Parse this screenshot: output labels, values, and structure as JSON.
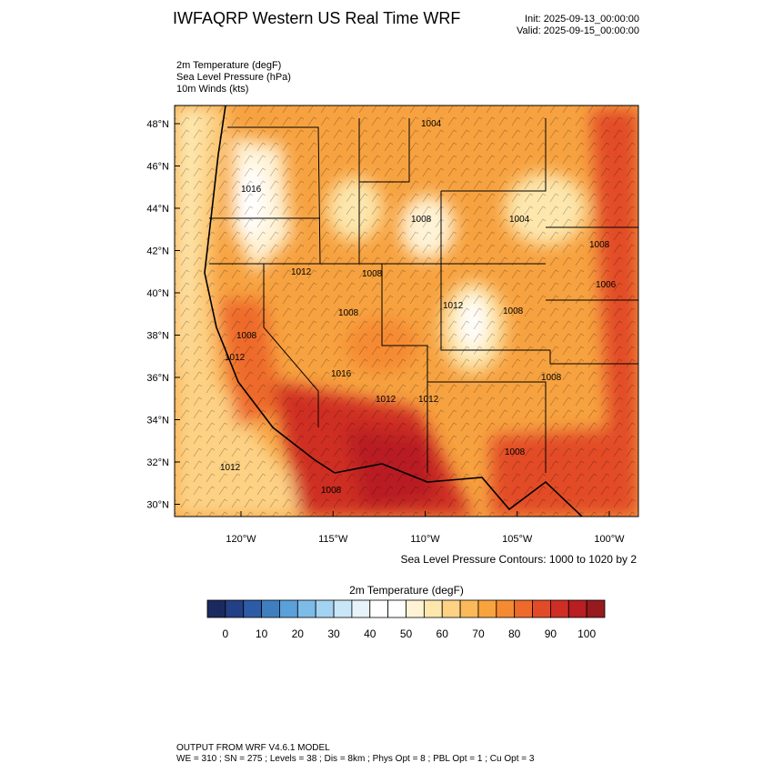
{
  "header": {
    "title": "IWFAQRP Western US Real Time WRF",
    "init": "Init: 2025-09-13_00:00:00",
    "valid": "Valid: 2025-09-15_00:00:00",
    "fields": [
      "2m Temperature   (degF)",
      "Sea Level Pressure   (hPa)",
      "10m Winds   (kts)"
    ]
  },
  "map": {
    "lat_labels": [
      "48°N",
      "46°N",
      "44°N",
      "42°N",
      "40°N",
      "38°N",
      "36°N",
      "34°N",
      "32°N",
      "30°N"
    ],
    "lon_labels": [
      "120°W",
      "115°W",
      "110°W",
      "105°W",
      "100°W"
    ],
    "contour_labels": [
      "1004",
      "1016",
      "1008",
      "1004",
      "1008",
      "1006",
      "1012",
      "1008",
      "1012",
      "1008",
      "1008",
      "1008",
      "1012",
      "1016",
      "1008",
      "1012",
      "1012",
      "1008",
      "1012",
      "1008"
    ],
    "contour_note": "Sea Level Pressure Contours: 1000 to 1020 by 2"
  },
  "colorbar": {
    "title": "2m Temperature  (degF)",
    "colors": [
      "#1b2a5e",
      "#233f85",
      "#2d5ca6",
      "#3f7fc0",
      "#5aa0d9",
      "#7dbbe8",
      "#a3d3f2",
      "#c8e6f8",
      "#e6f3fb",
      "#ffffff",
      "#ffffff",
      "#fff3d6",
      "#fde7ad",
      "#fdd285",
      "#fbb95a",
      "#f9a33e",
      "#f58a30",
      "#ee6a2a",
      "#e24b28",
      "#cf2e24",
      "#b81e22",
      "#961a1e"
    ],
    "ticks": [
      "0",
      "10",
      "20",
      "30",
      "40",
      "50",
      "60",
      "70",
      "80",
      "90",
      "100"
    ]
  },
  "footer": {
    "line1": "OUTPUT FROM WRF V4.6.1 MODEL",
    "line2": "WE = 310 ; SN = 275 ; Levels = 38 ; Dis = 8km ; Phys Opt = 8 ; PBL Opt = 1 ; Cu Opt = 3"
  }
}
